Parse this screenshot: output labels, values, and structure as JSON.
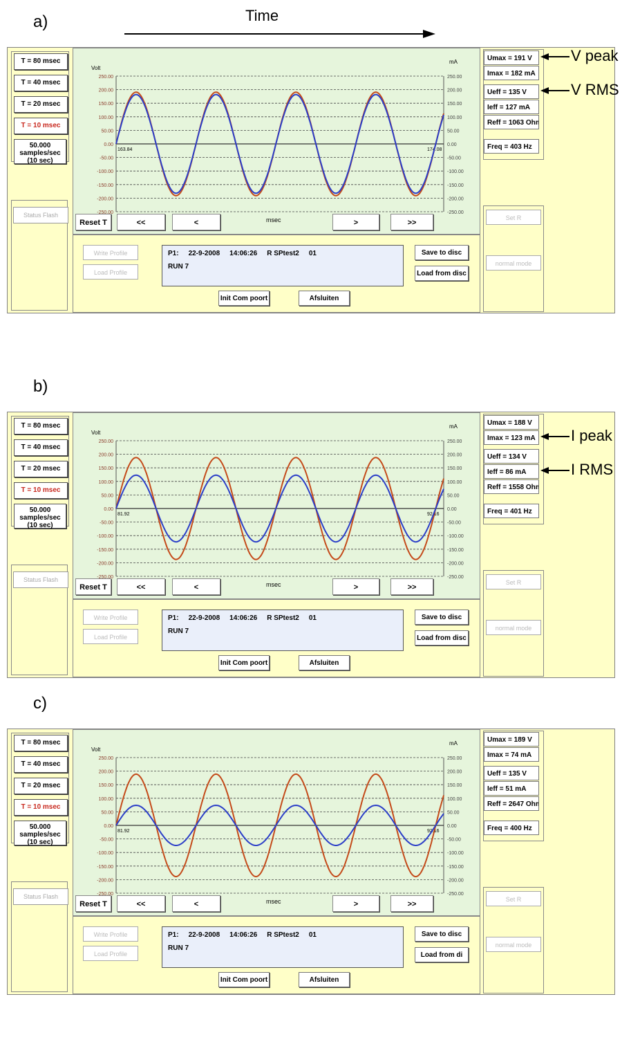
{
  "time_label": "Time",
  "colors": {
    "voltage_trace": "#c44a1a",
    "current_trace": "#2b3ec8",
    "panel_bg": "#ffffc8",
    "graph_bg": "#e6f5dc"
  },
  "common": {
    "t_buttons": [
      "T = 80 msec",
      "T = 40 msec",
      "T = 20 msec",
      "T = 10 msec"
    ],
    "samples_lines": [
      "50.000",
      "samples/sec",
      "(10 sec)"
    ],
    "status_flash": "Status Flash",
    "reset_t": "Reset T",
    "nav": [
      "<<",
      "<",
      "msec",
      ">",
      ">>"
    ],
    "write_profile": "Write Profile",
    "load_profile": "Load Profile",
    "p1": "P1:",
    "date": "22-9-2008",
    "time": "14:06:26",
    "test": "R SPtest2",
    "code": "01",
    "run": "RUN 7",
    "save_to_disc": "Save to disc",
    "init_comport": "Init Com poort",
    "afsluiten": "Afsluiten",
    "set_r": "Set R",
    "normal_mode": "normal mode",
    "y_left_title": "Volt",
    "y_right_title": "mA",
    "y_ticks": [
      "250.00",
      "200.00",
      "150.00",
      "100.00",
      "50.00",
      "0.00",
      "-50.00",
      "-100.00",
      "-150.00",
      "-200.00",
      "-250.00"
    ]
  },
  "panels": [
    {
      "letter": "a)",
      "x_start_label": "163.84",
      "x_end_label": "174.08",
      "load_from_disc": "Load from disc",
      "meas": [
        "Umax = 191 V",
        "Imax = 182 mA",
        "Ueff = 135 V",
        "Ieff = 127 mA",
        "Reff = 1063 Ohm",
        "Freq = 403 Hz"
      ],
      "annotations": [
        {
          "text": "V peak",
          "row": 0
        },
        {
          "text": "V RMS",
          "row": 2
        }
      ]
    },
    {
      "letter": "b)",
      "x_start_label": "81.92",
      "x_end_label": "92.16",
      "load_from_disc": "Load from disc",
      "meas": [
        "Umax = 188 V",
        "Imax = 123 mA",
        "Ueff = 134 V",
        "Ieff = 86 mA",
        "Reff = 1558 Ohm",
        "Freq = 401 Hz"
      ],
      "annotations": [
        {
          "text": "I peak",
          "row": 1
        },
        {
          "text": "I RMS",
          "row": 3
        }
      ]
    },
    {
      "letter": "c)",
      "x_start_label": "81.92",
      "x_end_label": "92.16",
      "load_from_disc": "Load from di",
      "meas": [
        "Umax = 189 V",
        "Imax = 74 mA",
        "Ueff = 135 V",
        "Ieff = 51 mA",
        "Reff = 2647 Ohm",
        "Freq = 400 Hz"
      ],
      "annotations": []
    }
  ],
  "chart_data": [
    {
      "type": "line",
      "x_range": [
        163.84,
        174.08
      ],
      "ylim": [
        -250,
        250
      ],
      "series": [
        {
          "amplitude": 191,
          "cycles": 4.1
        },
        {
          "amplitude": 182,
          "cycles": 4.1
        }
      ]
    },
    {
      "type": "line",
      "x_range": [
        81.92,
        92.16
      ],
      "ylim": [
        -250,
        250
      ],
      "series": [
        {
          "amplitude": 188,
          "cycles": 4.1
        },
        {
          "amplitude": 123,
          "cycles": 4.1
        }
      ]
    },
    {
      "type": "line",
      "x_range": [
        81.92,
        92.16
      ],
      "ylim": [
        -250,
        250
      ],
      "series": [
        {
          "amplitude": 189,
          "cycles": 4.1
        },
        {
          "amplitude": 74,
          "cycles": 4.1
        }
      ]
    }
  ]
}
